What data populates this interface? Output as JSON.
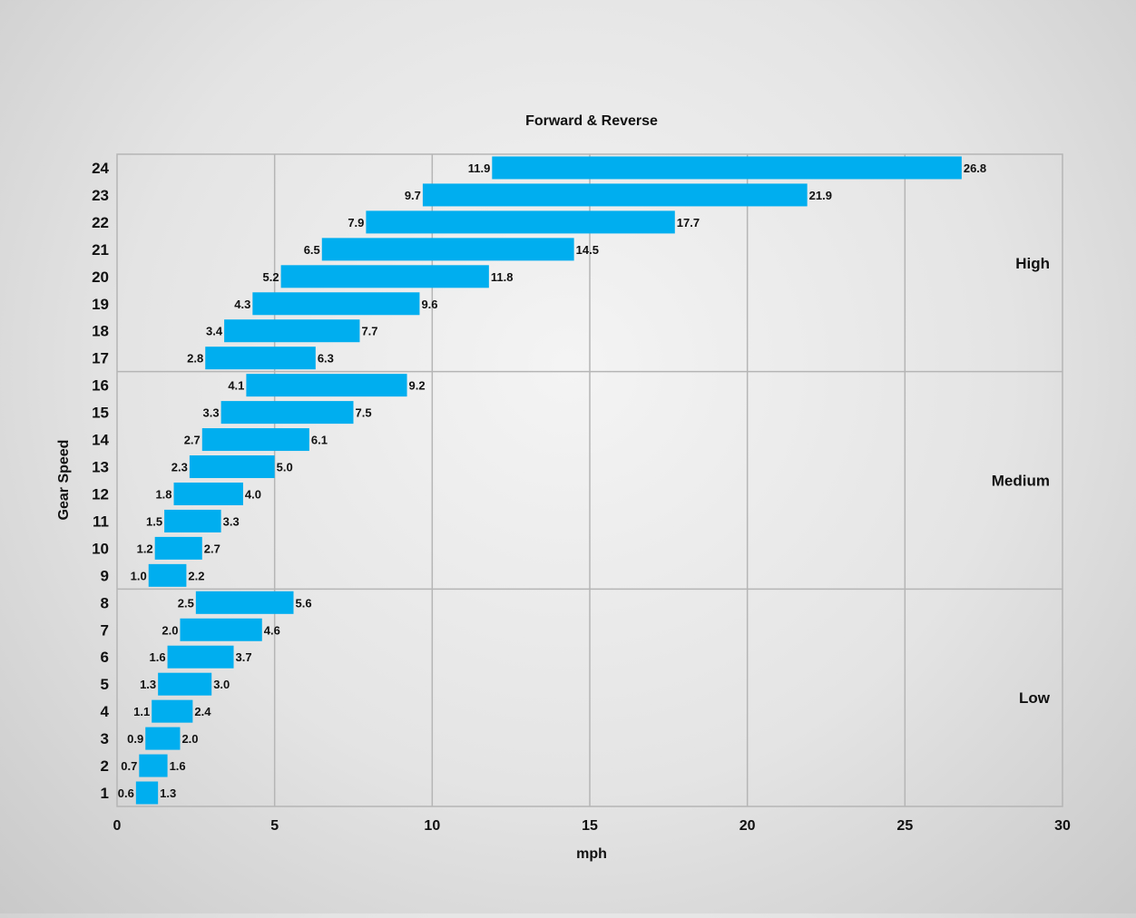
{
  "chart_data": {
    "type": "bar",
    "orientation": "horizontal-floating",
    "title": "Forward & Reverse",
    "xlabel": "mph",
    "ylabel": "Gear Speed",
    "xlim": [
      0,
      30
    ],
    "x_ticks": [
      "0",
      "5",
      "10",
      "15",
      "20",
      "25",
      "30"
    ],
    "grid": true,
    "bar_color": "#00aeef",
    "categories": [
      "1",
      "2",
      "3",
      "4",
      "5",
      "6",
      "7",
      "8",
      "9",
      "10",
      "11",
      "12",
      "13",
      "14",
      "15",
      "16",
      "17",
      "18",
      "19",
      "20",
      "21",
      "22",
      "23",
      "24"
    ],
    "start_values": [
      0.6,
      0.7,
      0.9,
      1.1,
      1.3,
      1.6,
      2.0,
      2.5,
      1.0,
      1.2,
      1.5,
      1.8,
      2.3,
      2.7,
      3.3,
      4.1,
      2.8,
      3.4,
      4.3,
      5.2,
      6.5,
      7.9,
      9.7,
      11.9
    ],
    "end_values": [
      1.3,
      1.6,
      2.0,
      2.4,
      3.0,
      3.7,
      4.6,
      5.6,
      2.2,
      2.7,
      3.3,
      4.0,
      5.0,
      6.1,
      7.5,
      9.2,
      6.3,
      7.7,
      9.6,
      11.8,
      14.5,
      17.7,
      21.9,
      26.8
    ],
    "start_labels": [
      "0.6",
      "0.7",
      "0.9",
      "1.1",
      "1.3",
      "1.6",
      "2.0",
      "2.5",
      "1.0",
      "1.2",
      "1.5",
      "1.8",
      "2.3",
      "2.7",
      "3.3",
      "4.1",
      "2.8",
      "3.4",
      "4.3",
      "5.2",
      "6.5",
      "7.9",
      "9.7",
      "11.9"
    ],
    "end_labels": [
      "1.3",
      "1.6",
      "2.0",
      "2.4",
      "3.0",
      "3.7",
      "4.6",
      "5.6",
      "2.2",
      "2.7",
      "3.3",
      "4.0",
      "5.0",
      "6.1",
      "7.5",
      "9.2",
      "6.3",
      "7.7",
      "9.6",
      "11.8",
      "14.5",
      "17.7",
      "21.9",
      "26.8"
    ],
    "groups": [
      {
        "name": "Low",
        "first_gear": 1,
        "last_gear": 8
      },
      {
        "name": "Medium",
        "first_gear": 9,
        "last_gear": 16
      },
      {
        "name": "High",
        "first_gear": 17,
        "last_gear": 24
      }
    ]
  }
}
